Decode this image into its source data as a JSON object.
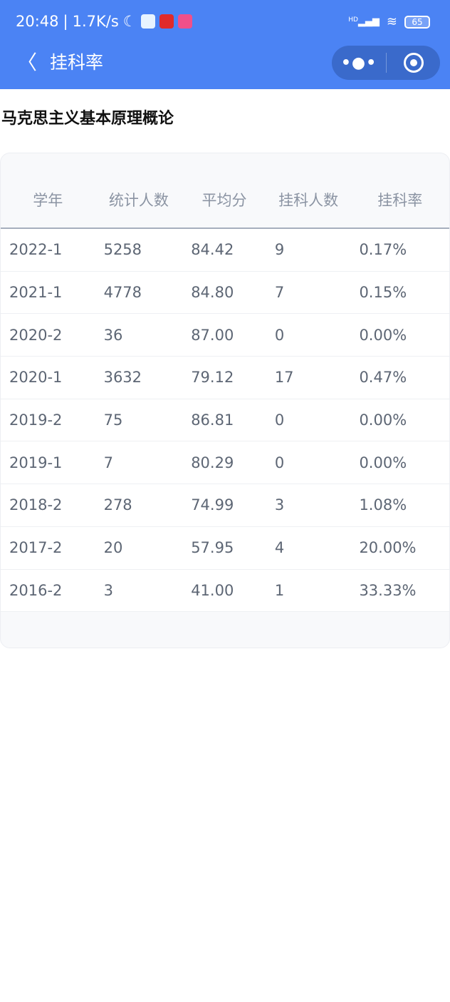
{
  "status_bar": {
    "time": "20:48",
    "speed": "1.7K/s",
    "signal": "HD",
    "battery": "65"
  },
  "nav": {
    "title": "挂科率",
    "more": "•●•"
  },
  "course_title": "马克思主义基本原理概论",
  "table": {
    "headers": [
      "学年",
      "统计人数",
      "平均分",
      "挂科人数",
      "挂科率"
    ],
    "rows": [
      [
        "2022-1",
        "5258",
        "84.42",
        "9",
        "0.17%"
      ],
      [
        "2021-1",
        "4778",
        "84.80",
        "7",
        "0.15%"
      ],
      [
        "2020-2",
        "36",
        "87.00",
        "0",
        "0.00%"
      ],
      [
        "2020-1",
        "3632",
        "79.12",
        "17",
        "0.47%"
      ],
      [
        "2019-2",
        "75",
        "86.81",
        "0",
        "0.00%"
      ],
      [
        "2019-1",
        "7",
        "80.29",
        "0",
        "0.00%"
      ],
      [
        "2018-2",
        "278",
        "74.99",
        "3",
        "1.08%"
      ],
      [
        "2017-2",
        "20",
        "57.95",
        "4",
        "20.00%"
      ],
      [
        "2016-2",
        "3",
        "41.00",
        "1",
        "33.33%"
      ]
    ]
  },
  "colors": {
    "brand": "#4b83f4"
  }
}
